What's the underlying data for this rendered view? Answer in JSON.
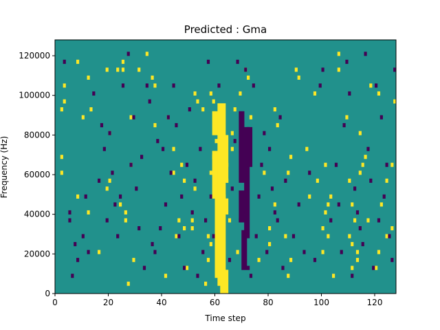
{
  "chart_data": {
    "type": "heatmap",
    "title": "Predicted : Gma",
    "xlabel": "Time step",
    "ylabel": "Frequency (Hz)",
    "xlim": [
      0,
      128
    ],
    "ylim": [
      0,
      128000
    ],
    "x_ticks": [
      0,
      20,
      40,
      60,
      80,
      100,
      120
    ],
    "y_ticks": [
      0,
      20000,
      40000,
      60000,
      80000,
      100000,
      120000
    ],
    "rows": 64,
    "cols": 128,
    "colors": {
      "background": "#21918c",
      "high": "#fde725",
      "low": "#440154"
    },
    "cells": {
      "high": [
        [
          2,
          92,
          1
        ],
        [
          2,
          60,
          1
        ],
        [
          2,
          68,
          1
        ],
        [
          3,
          104,
          1
        ],
        [
          3,
          96,
          1
        ],
        [
          8,
          116,
          1
        ],
        [
          8,
          48,
          1
        ],
        [
          10,
          88,
          1
        ],
        [
          12,
          40,
          1
        ],
        [
          12,
          108,
          1
        ],
        [
          13,
          92,
          1
        ],
        [
          16,
          20,
          1
        ],
        [
          19,
          52,
          1
        ],
        [
          19,
          112,
          1
        ],
        [
          20,
          80,
          1
        ],
        [
          20,
          56,
          1
        ],
        [
          23,
          112,
          1
        ],
        [
          24,
          44,
          1
        ],
        [
          25,
          112,
          1
        ],
        [
          25,
          116,
          1
        ],
        [
          26,
          40,
          1
        ],
        [
          26,
          36,
          1
        ],
        [
          27,
          4,
          1
        ],
        [
          28,
          88,
          1
        ],
        [
          28,
          64,
          1
        ],
        [
          29,
          16,
          1
        ],
        [
          31,
          112,
          1
        ],
        [
          34,
          120,
          1
        ],
        [
          36,
          108,
          1
        ],
        [
          37,
          84,
          1
        ],
        [
          37,
          104,
          1
        ],
        [
          41,
          8,
          1
        ],
        [
          42,
          88,
          1
        ],
        [
          44,
          60,
          1
        ],
        [
          44,
          72,
          1
        ],
        [
          45,
          28,
          1
        ],
        [
          46,
          36,
          1
        ],
        [
          47,
          64,
          1
        ],
        [
          48,
          32,
          1
        ],
        [
          48,
          56,
          1
        ],
        [
          49,
          12,
          1
        ],
        [
          51,
          32,
          1
        ],
        [
          51,
          36,
          1
        ],
        [
          52,
          52,
          1
        ],
        [
          52,
          100,
          1
        ],
        [
          53,
          96,
          1
        ],
        [
          55,
          92,
          1
        ],
        [
          56,
          4,
          1
        ],
        [
          57,
          16,
          1
        ],
        [
          57,
          28,
          1
        ],
        [
          58,
          24,
          1
        ],
        [
          58,
          60,
          1
        ],
        [
          58,
          100,
          1
        ],
        [
          59,
          68,
          1
        ],
        [
          59,
          96,
          1
        ],
        [
          60,
          40,
          1
        ],
        [
          60,
          76,
          1
        ],
        [
          60,
          84,
          1
        ],
        [
          61,
          44,
          1
        ],
        [
          61,
          88,
          1
        ],
        [
          62,
          32,
          1
        ],
        [
          62,
          36,
          1
        ],
        [
          62,
          60,
          1
        ],
        [
          63,
          48,
          1
        ],
        [
          64,
          56,
          1
        ],
        [
          64,
          64,
          1
        ],
        [
          65,
          36,
          1
        ],
        [
          66,
          72,
          1
        ],
        [
          66,
          80,
          1
        ],
        [
          67,
          92,
          1
        ],
        [
          68,
          20,
          1
        ],
        [
          69,
          100,
          1
        ],
        [
          71,
          112,
          1
        ],
        [
          72,
          108,
          1
        ],
        [
          73,
          88,
          1
        ],
        [
          76,
          16,
          1
        ],
        [
          78,
          60,
          1
        ],
        [
          80,
          24,
          1
        ],
        [
          80,
          32,
          1
        ],
        [
          82,
          44,
          1
        ],
        [
          82,
          92,
          1
        ],
        [
          83,
          84,
          1
        ],
        [
          86,
          28,
          1
        ],
        [
          87,
          8,
          1
        ],
        [
          87,
          60,
          1
        ],
        [
          88,
          16,
          1
        ],
        [
          88,
          68,
          1
        ],
        [
          90,
          112,
          1
        ],
        [
          91,
          108,
          1
        ],
        [
          94,
          72,
          1
        ],
        [
          95,
          48,
          1
        ],
        [
          97,
          100,
          1
        ],
        [
          98,
          56,
          1
        ],
        [
          100,
          20,
          1
        ],
        [
          100,
          32,
          1
        ],
        [
          101,
          40,
          1
        ],
        [
          101,
          64,
          1
        ],
        [
          102,
          28,
          1
        ],
        [
          102,
          44,
          1
        ],
        [
          103,
          48,
          1
        ],
        [
          104,
          8,
          1
        ],
        [
          106,
          112,
          1
        ],
        [
          106,
          120,
          1
        ],
        [
          109,
          88,
          1
        ],
        [
          110,
          28,
          1
        ],
        [
          110,
          56,
          1
        ],
        [
          111,
          12,
          1
        ],
        [
          111,
          24,
          1
        ],
        [
          111,
          44,
          1
        ],
        [
          112,
          36,
          1
        ],
        [
          113,
          16,
          1
        ],
        [
          113,
          20,
          1
        ],
        [
          114,
          60,
          1
        ],
        [
          114,
          80,
          1
        ],
        [
          115,
          64,
          1
        ],
        [
          116,
          68,
          1
        ],
        [
          117,
          36,
          1
        ],
        [
          118,
          104,
          1
        ],
        [
          120,
          12,
          1
        ],
        [
          121,
          20,
          1
        ],
        [
          121,
          100,
          1
        ],
        [
          122,
          44,
          1
        ],
        [
          124,
          28,
          1
        ],
        [
          124,
          56,
          1
        ],
        [
          126,
          32,
          1
        ],
        [
          126,
          64,
          1
        ],
        [
          127,
          96,
          1
        ]
      ],
      "low": [
        [
          3,
          116,
          1
        ],
        [
          5,
          40,
          1
        ],
        [
          5,
          36,
          1
        ],
        [
          6,
          8,
          1
        ],
        [
          7,
          24,
          1
        ],
        [
          8,
          16,
          1
        ],
        [
          10,
          28,
          1
        ],
        [
          11,
          48,
          1
        ],
        [
          12,
          20,
          1
        ],
        [
          14,
          100,
          1
        ],
        [
          16,
          56,
          1
        ],
        [
          17,
          84,
          1
        ],
        [
          18,
          72,
          1
        ],
        [
          19,
          36,
          1
        ],
        [
          20,
          80,
          1
        ],
        [
          21,
          60,
          1
        ],
        [
          22,
          44,
          1
        ],
        [
          23,
          28,
          1
        ],
        [
          24,
          48,
          1
        ],
        [
          25,
          104,
          1
        ],
        [
          27,
          120,
          1
        ],
        [
          28,
          64,
          1
        ],
        [
          29,
          88,
          1
        ],
        [
          30,
          52,
          1
        ],
        [
          31,
          32,
          1
        ],
        [
          32,
          68,
          1
        ],
        [
          33,
          12,
          1
        ],
        [
          34,
          104,
          1
        ],
        [
          35,
          96,
          1
        ],
        [
          36,
          24,
          1
        ],
        [
          37,
          20,
          1
        ],
        [
          38,
          76,
          1
        ],
        [
          39,
          32,
          1
        ],
        [
          40,
          72,
          1
        ],
        [
          41,
          44,
          1
        ],
        [
          42,
          88,
          1
        ],
        [
          43,
          60,
          1
        ],
        [
          44,
          104,
          1
        ],
        [
          45,
          84,
          1
        ],
        [
          46,
          28,
          1
        ],
        [
          47,
          48,
          1
        ],
        [
          48,
          12,
          1
        ],
        [
          49,
          64,
          1
        ],
        [
          50,
          92,
          1
        ],
        [
          51,
          40,
          1
        ],
        [
          52,
          56,
          1
        ],
        [
          53,
          8,
          1
        ],
        [
          54,
          72,
          1
        ],
        [
          55,
          20,
          1
        ],
        [
          56,
          36,
          1
        ],
        [
          57,
          116,
          1
        ],
        [
          58,
          48,
          1
        ],
        [
          59,
          28,
          1
        ],
        [
          61,
          104,
          1
        ],
        [
          65,
          16,
          1
        ],
        [
          66,
          52,
          1
        ],
        [
          67,
          76,
          1
        ],
        [
          68,
          116,
          1
        ],
        [
          69,
          36,
          1
        ],
        [
          70,
          40,
          1
        ],
        [
          71,
          112,
          1
        ],
        [
          72,
          12,
          1
        ],
        [
          73,
          8,
          1
        ],
        [
          74,
          104,
          1
        ],
        [
          75,
          28,
          1
        ],
        [
          76,
          48,
          1
        ],
        [
          77,
          64,
          1
        ],
        [
          78,
          80,
          1
        ],
        [
          79,
          20,
          1
        ],
        [
          80,
          72,
          1
        ],
        [
          81,
          52,
          1
        ],
        [
          82,
          40,
          1
        ],
        [
          83,
          36,
          1
        ],
        [
          84,
          88,
          1
        ],
        [
          85,
          12,
          1
        ],
        [
          86,
          56,
          1
        ],
        [
          89,
          28,
          1
        ],
        [
          91,
          44,
          1
        ],
        [
          93,
          20,
          1
        ],
        [
          95,
          60,
          1
        ],
        [
          97,
          16,
          1
        ],
        [
          99,
          104,
          1
        ],
        [
          100,
          112,
          1
        ],
        [
          103,
          36,
          1
        ],
        [
          105,
          64,
          1
        ],
        [
          106,
          44,
          1
        ],
        [
          107,
          20,
          1
        ],
        [
          108,
          84,
          1
        ],
        [
          109,
          116,
          1
        ],
        [
          110,
          100,
          1
        ],
        [
          111,
          8,
          1
        ],
        [
          112,
          52,
          1
        ],
        [
          113,
          40,
          1
        ],
        [
          114,
          32,
          1
        ],
        [
          115,
          24,
          1
        ],
        [
          116,
          120,
          1
        ],
        [
          117,
          72,
          1
        ],
        [
          118,
          56,
          1
        ],
        [
          119,
          12,
          1
        ],
        [
          120,
          104,
          1
        ],
        [
          121,
          36,
          1
        ],
        [
          122,
          88,
          1
        ],
        [
          123,
          48,
          1
        ],
        [
          124,
          64,
          1
        ],
        [
          125,
          28,
          1
        ],
        [
          126,
          16,
          1
        ],
        [
          127,
          112,
          1
        ]
      ],
      "high_runs": [
        [
          59,
          48,
          4,
          24
        ],
        [
          59,
          80,
          4,
          12
        ],
        [
          60,
          8,
          3,
          40
        ],
        [
          61,
          4,
          3,
          92
        ],
        [
          62,
          0,
          3,
          12
        ],
        [
          63,
          40,
          2,
          8
        ],
        [
          63,
          56,
          2,
          24
        ]
      ],
      "low_runs": [
        [
          69,
          36,
          2,
          16
        ],
        [
          69,
          56,
          2,
          36
        ],
        [
          70,
          12,
          2,
          20
        ],
        [
          71,
          28,
          2,
          56
        ],
        [
          72,
          64,
          2,
          20
        ]
      ]
    }
  }
}
